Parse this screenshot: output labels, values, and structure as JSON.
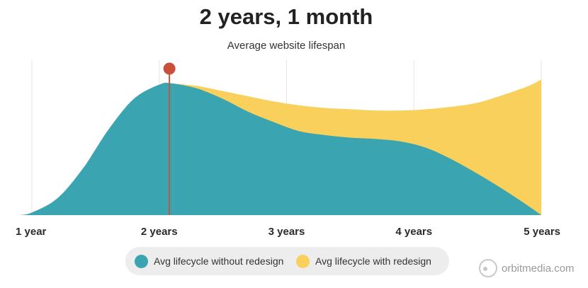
{
  "colors": {
    "without_redesign": "#3aa5b1",
    "with_redesign": "#f8d05b",
    "marker": "#c9513a",
    "grid": "#e6e6e6"
  },
  "brand": {
    "text": "orbitmedia.com",
    "icon": "orbit-logo-icon"
  },
  "chart_data": {
    "type": "area",
    "title": "2 years, 1 month",
    "subtitle": "Average website lifespan",
    "xlabel": "",
    "ylabel": "",
    "x_ticks": [
      "1 year",
      "2 years",
      "3 years",
      "4 years",
      "5 years"
    ],
    "xlim": [
      1,
      5
    ],
    "ylim": [
      0,
      1.2
    ],
    "grid": "vertical",
    "legend_position": "bottom-center",
    "marker": {
      "x": 2.08
    },
    "series": [
      {
        "name": "Avg lifecycle without redesign",
        "color": "#3aa5b1",
        "x": [
          0.9,
          1.0,
          1.2,
          1.4,
          1.6,
          1.8,
          2.0,
          2.1,
          2.3,
          2.5,
          2.7,
          2.9,
          3.1,
          3.3,
          3.5,
          3.7,
          3.9,
          4.1,
          4.3,
          4.5,
          4.7,
          4.9,
          5.0
        ],
        "values": [
          0.0,
          0.02,
          0.13,
          0.36,
          0.66,
          0.9,
          1.01,
          1.02,
          0.98,
          0.9,
          0.8,
          0.72,
          0.65,
          0.62,
          0.6,
          0.59,
          0.57,
          0.52,
          0.43,
          0.32,
          0.2,
          0.07,
          0.0
        ]
      },
      {
        "name": "Avg lifecycle with redesign",
        "color": "#f8d05b",
        "x": [
          2.1,
          2.3,
          2.5,
          2.7,
          2.9,
          3.1,
          3.3,
          3.5,
          3.7,
          3.9,
          4.1,
          4.3,
          4.5,
          4.7,
          4.9,
          5.0
        ],
        "values": [
          1.02,
          1.0,
          0.96,
          0.92,
          0.88,
          0.85,
          0.83,
          0.82,
          0.81,
          0.81,
          0.82,
          0.84,
          0.87,
          0.93,
          1.0,
          1.05
        ]
      }
    ]
  }
}
